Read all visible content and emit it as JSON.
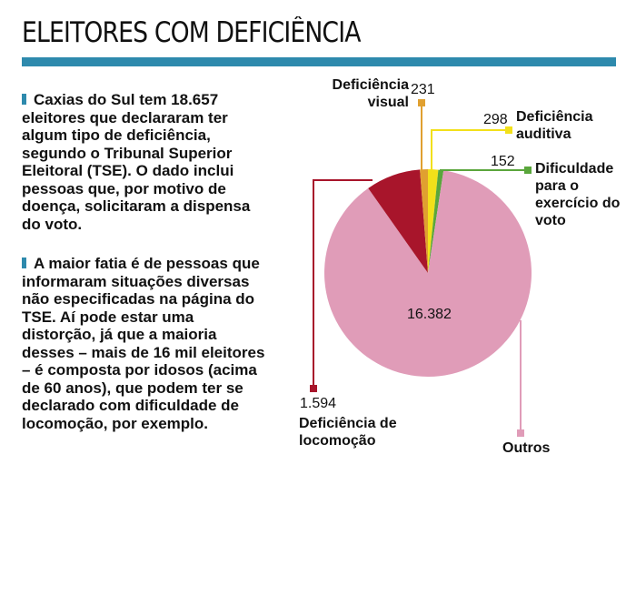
{
  "title": "ELEITORES COM DEFICIÊNCIA",
  "paragraphs": [
    "Caxias do Sul tem 18.657 eleitores que declararam ter algum tipo de deficiência, segundo o Tribunal Superior Eleitoral (TSE). O dado inclui pessoas que, por motivo de doença, solicitaram a dispensa do voto.",
    "A maior fatia é de pessoas que informaram situações diversas não especificadas na página do TSE. Aí pode estar uma distorção, já que a maioria desses – mais de 16 mil eleitores – é composta por idosos (acima de 60 anos), que podem ter se declarado com dificuldade de locomoção, por exemplo."
  ],
  "chart_data": {
    "type": "pie",
    "title": "ELEITORES COM DEFICIÊNCIA",
    "total": 18657,
    "slices": [
      {
        "name": "Deficiência auditiva",
        "value": 298,
        "label": "298",
        "color": "#f2e01a"
      },
      {
        "name": "Dificuldade para o exercício do voto",
        "value": 152,
        "label": "152",
        "color": "#5aa63c"
      },
      {
        "name": "Outros",
        "value": 16382,
        "label": "16.382",
        "color": "#e09cb8"
      },
      {
        "name": "Deficiência de locomoção",
        "value": 1594,
        "label": "1.594",
        "color": "#a8152b"
      },
      {
        "name": "Deficiência visual",
        "value": 231,
        "label": "231",
        "color": "#e0a030"
      }
    ],
    "start": "top",
    "direction": "clockwise"
  }
}
